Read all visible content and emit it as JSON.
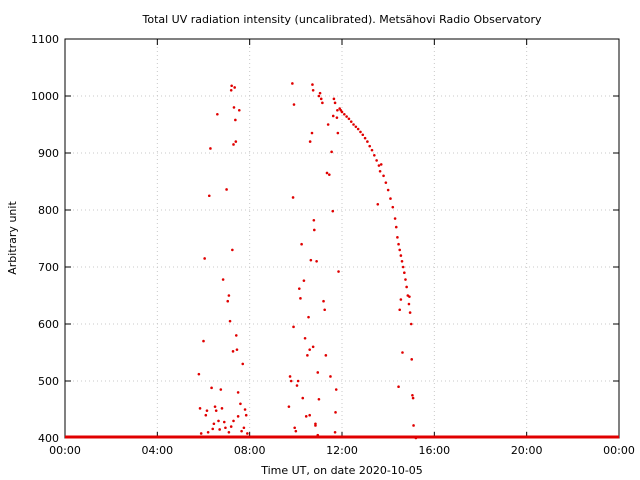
{
  "chart_data": {
    "type": "scatter",
    "title": "Total UV radiation intensity (uncalibrated). Metsähovi Radio Observatory",
    "xlabel": "Time UT, on date 2020-10-05",
    "ylabel": "Arbitrary unit",
    "xlim": [
      0,
      24
    ],
    "ylim": [
      400,
      1100
    ],
    "xticks": [
      {
        "value": 0,
        "label": "00:00"
      },
      {
        "value": 4,
        "label": "04:00"
      },
      {
        "value": 8,
        "label": "08:00"
      },
      {
        "value": 12,
        "label": "12:00"
      },
      {
        "value": 16,
        "label": "16:00"
      },
      {
        "value": 20,
        "label": "20:00"
      },
      {
        "value": 24,
        "label": "00:00"
      }
    ],
    "yticks": [
      400,
      500,
      600,
      700,
      800,
      900,
      1000,
      1100
    ],
    "grid": true,
    "marker_color": "#e00000",
    "baseline": {
      "value": 400,
      "x_start": 0,
      "x_end": 24
    },
    "points": [
      [
        5.8,
        512
      ],
      [
        5.85,
        452
      ],
      [
        5.9,
        408
      ],
      [
        6.0,
        570
      ],
      [
        6.05,
        715
      ],
      [
        6.1,
        440
      ],
      [
        6.15,
        448
      ],
      [
        6.2,
        410
      ],
      [
        6.25,
        825
      ],
      [
        6.3,
        908
      ],
      [
        6.35,
        488
      ],
      [
        6.4,
        416
      ],
      [
        6.45,
        425
      ],
      [
        6.5,
        455
      ],
      [
        6.55,
        448
      ],
      [
        6.6,
        968
      ],
      [
        6.65,
        430
      ],
      [
        6.7,
        415
      ],
      [
        6.75,
        485
      ],
      [
        6.8,
        452
      ],
      [
        6.85,
        678
      ],
      [
        6.9,
        428
      ],
      [
        6.95,
        418
      ],
      [
        7.0,
        836
      ],
      [
        7.05,
        640
      ],
      [
        7.1,
        650
      ],
      [
        7.15,
        605
      ],
      [
        7.2,
        1010
      ],
      [
        7.22,
        1018
      ],
      [
        7.25,
        730
      ],
      [
        7.28,
        552
      ],
      [
        7.3,
        915
      ],
      [
        7.32,
        980
      ],
      [
        7.35,
        1015
      ],
      [
        7.38,
        958
      ],
      [
        7.4,
        920
      ],
      [
        7.42,
        580
      ],
      [
        7.45,
        555
      ],
      [
        7.5,
        480
      ],
      [
        7.55,
        975
      ],
      [
        7.6,
        460
      ],
      [
        7.7,
        530
      ],
      [
        7.8,
        450
      ],
      [
        7.85,
        440
      ],
      [
        7.5,
        438
      ],
      [
        7.3,
        430
      ],
      [
        7.2,
        420
      ],
      [
        7.1,
        410
      ],
      [
        7.65,
        412
      ],
      [
        7.75,
        418
      ],
      [
        7.9,
        408
      ],
      [
        9.7,
        455
      ],
      [
        9.75,
        508
      ],
      [
        9.8,
        500
      ],
      [
        9.85,
        1022
      ],
      [
        9.88,
        822
      ],
      [
        9.9,
        595
      ],
      [
        9.92,
        985
      ],
      [
        9.95,
        418
      ],
      [
        10.0,
        412
      ],
      [
        10.05,
        492
      ],
      [
        10.1,
        500
      ],
      [
        10.15,
        662
      ],
      [
        10.2,
        645
      ],
      [
        10.25,
        740
      ],
      [
        10.3,
        470
      ],
      [
        10.35,
        676
      ],
      [
        10.4,
        575
      ],
      [
        10.45,
        438
      ],
      [
        10.5,
        545
      ],
      [
        10.55,
        612
      ],
      [
        10.6,
        440
      ],
      [
        10.62,
        920
      ],
      [
        10.65,
        712
      ],
      [
        10.7,
        935
      ],
      [
        10.72,
        1020
      ],
      [
        10.75,
        1010
      ],
      [
        10.78,
        782
      ],
      [
        10.8,
        765
      ],
      [
        10.85,
        422
      ],
      [
        10.9,
        710
      ],
      [
        10.95,
        515
      ],
      [
        11.0,
        1000
      ],
      [
        11.05,
        1005
      ],
      [
        11.1,
        995
      ],
      [
        11.15,
        988
      ],
      [
        11.2,
        640
      ],
      [
        11.25,
        625
      ],
      [
        11.3,
        545
      ],
      [
        11.35,
        865
      ],
      [
        11.4,
        950
      ],
      [
        11.45,
        862
      ],
      [
        11.5,
        508
      ],
      [
        11.55,
        902
      ],
      [
        11.6,
        798
      ],
      [
        11.62,
        965
      ],
      [
        11.65,
        995
      ],
      [
        11.7,
        988
      ],
      [
        11.72,
        445
      ],
      [
        11.75,
        485
      ],
      [
        11.78,
        962
      ],
      [
        11.8,
        975
      ],
      [
        11.82,
        935
      ],
      [
        11.85,
        692
      ],
      [
        11.9,
        978
      ],
      [
        11.95,
        975
      ],
      [
        12.0,
        972
      ],
      [
        11.0,
        468
      ],
      [
        10.85,
        425
      ],
      [
        10.95,
        405
      ],
      [
        11.7,
        410
      ],
      [
        10.6,
        555
      ],
      [
        10.75,
        560
      ],
      [
        12.1,
        968
      ],
      [
        12.2,
        964
      ],
      [
        12.3,
        960
      ],
      [
        12.4,
        955
      ],
      [
        12.5,
        950
      ],
      [
        12.6,
        946
      ],
      [
        12.7,
        942
      ],
      [
        12.8,
        937
      ],
      [
        12.9,
        932
      ],
      [
        13.0,
        926
      ],
      [
        13.1,
        920
      ],
      [
        13.2,
        912
      ],
      [
        13.3,
        905
      ],
      [
        13.4,
        896
      ],
      [
        13.5,
        887
      ],
      [
        13.55,
        810
      ],
      [
        13.6,
        878
      ],
      [
        13.65,
        868
      ],
      [
        13.7,
        880
      ],
      [
        13.8,
        860
      ],
      [
        13.9,
        848
      ],
      [
        14.0,
        835
      ],
      [
        14.1,
        820
      ],
      [
        14.2,
        805
      ],
      [
        14.3,
        785
      ],
      [
        14.35,
        770
      ],
      [
        14.4,
        752
      ],
      [
        14.45,
        740
      ],
      [
        14.5,
        730
      ],
      [
        14.55,
        720
      ],
      [
        14.6,
        710
      ],
      [
        14.62,
        550
      ],
      [
        14.65,
        700
      ],
      [
        14.7,
        690
      ],
      [
        14.75,
        678
      ],
      [
        14.8,
        665
      ],
      [
        14.85,
        650
      ],
      [
        14.9,
        635
      ],
      [
        14.92,
        648
      ],
      [
        14.95,
        620
      ],
      [
        15.0,
        600
      ],
      [
        15.02,
        538
      ],
      [
        15.05,
        475
      ],
      [
        15.08,
        470
      ],
      [
        15.1,
        422
      ],
      [
        14.5,
        625
      ],
      [
        14.45,
        490
      ],
      [
        14.55,
        643
      ],
      [
        15.15,
        402
      ],
      [
        15.2,
        400
      ]
    ]
  }
}
